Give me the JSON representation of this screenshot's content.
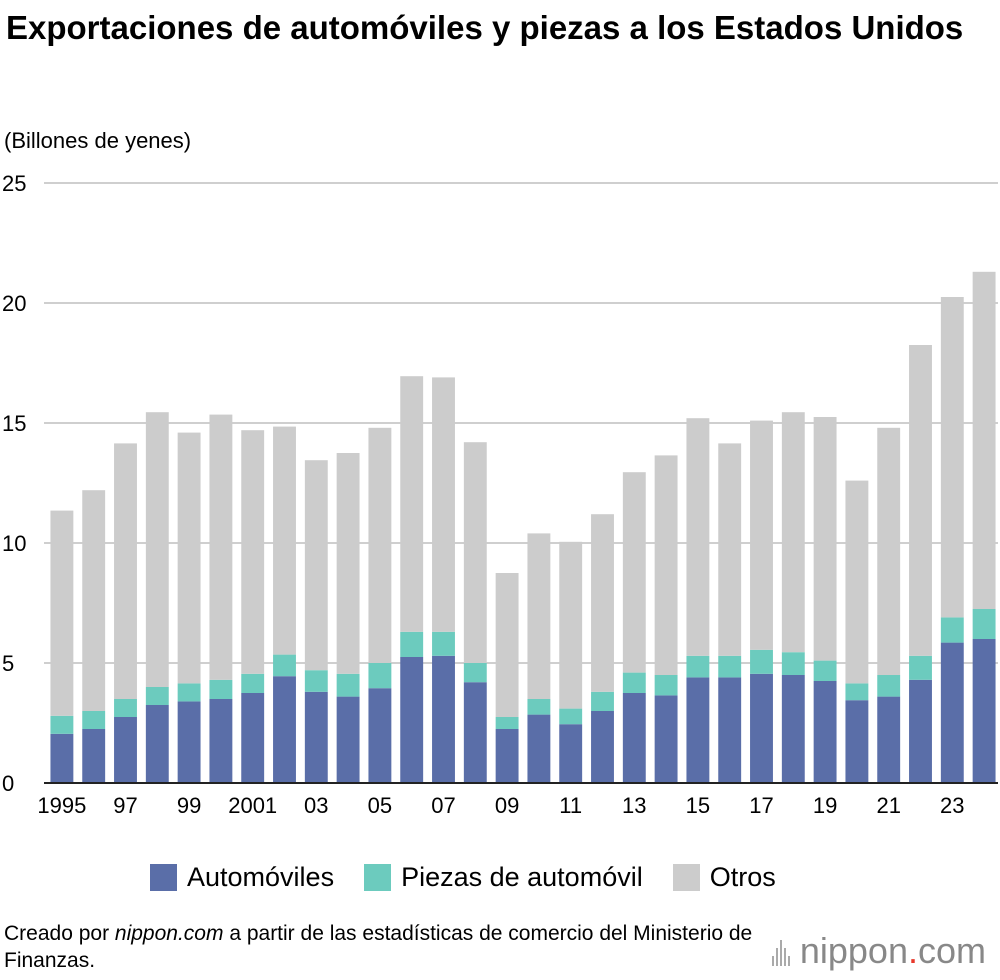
{
  "title": "Exportaciones de automóviles y piezas a los Estados Unidos",
  "unit_label": "(Billones de yenes)",
  "legend": {
    "automoviles": "Automóviles",
    "piezas": "Piezas de automóvil",
    "otros": "Otros"
  },
  "source": {
    "prefix": "Creado por ",
    "site": "nippon.com",
    "suffix": " a partir de las estadísticas de comercio del Ministerio de Finanzas."
  },
  "logo": {
    "name": "nippon",
    "dot": ".",
    "tld": "com",
    "icon": "nippon-logo-icon"
  },
  "colors": {
    "automoviles": "#5a6ea8",
    "piezas": "#6ccbbe",
    "otros": "#cccccc",
    "grid": "#cfcfcf"
  },
  "chart_data": {
    "type": "bar",
    "stacked": true,
    "ylim": [
      0,
      25
    ],
    "yticks": [
      0,
      5,
      10,
      15,
      20,
      25
    ],
    "grid": true,
    "legend_position": "bottom",
    "categories": [
      "1995",
      "1996",
      "1997",
      "1998",
      "1999",
      "2000",
      "2001",
      "2002",
      "2003",
      "2004",
      "2005",
      "2006",
      "2007",
      "2008",
      "2009",
      "2010",
      "2011",
      "2012",
      "2013",
      "2014",
      "2015",
      "2016",
      "2017",
      "2018",
      "2019",
      "2020",
      "2021",
      "2022",
      "2023",
      "2024"
    ],
    "tick_labels": [
      "1995",
      "",
      "97",
      "",
      "99",
      "",
      "2001",
      "",
      "03",
      "",
      "05",
      "",
      "07",
      "",
      "09",
      "",
      "11",
      "",
      "13",
      "",
      "15",
      "",
      "17",
      "",
      "19",
      "",
      "21",
      "",
      "23",
      ""
    ],
    "series": [
      {
        "name": "Automóviles",
        "color": "#5a6ea8",
        "values": [
          2.05,
          2.25,
          2.75,
          3.25,
          3.4,
          3.5,
          3.75,
          4.45,
          3.8,
          3.6,
          3.95,
          5.25,
          5.3,
          4.2,
          2.25,
          2.85,
          2.45,
          3.0,
          3.75,
          3.65,
          4.4,
          4.4,
          4.55,
          4.5,
          4.25,
          3.45,
          3.6,
          4.3,
          5.85,
          6.0
        ]
      },
      {
        "name": "Piezas de automóvil",
        "color": "#6ccbbe",
        "values": [
          0.75,
          0.75,
          0.75,
          0.75,
          0.75,
          0.8,
          0.8,
          0.9,
          0.9,
          0.95,
          1.05,
          1.05,
          1.0,
          0.8,
          0.5,
          0.65,
          0.65,
          0.8,
          0.85,
          0.85,
          0.9,
          0.9,
          1.0,
          0.95,
          0.85,
          0.7,
          0.9,
          1.0,
          1.05,
          1.25
        ]
      },
      {
        "name": "Otros",
        "color": "#cccccc",
        "values": [
          8.55,
          9.2,
          10.65,
          11.45,
          10.45,
          11.05,
          10.15,
          9.5,
          8.75,
          9.2,
          9.8,
          10.65,
          10.6,
          9.2,
          6.0,
          6.9,
          6.95,
          7.4,
          8.35,
          9.15,
          9.9,
          8.85,
          9.55,
          10.0,
          10.15,
          8.45,
          10.3,
          12.95,
          13.35,
          14.05
        ]
      }
    ]
  }
}
